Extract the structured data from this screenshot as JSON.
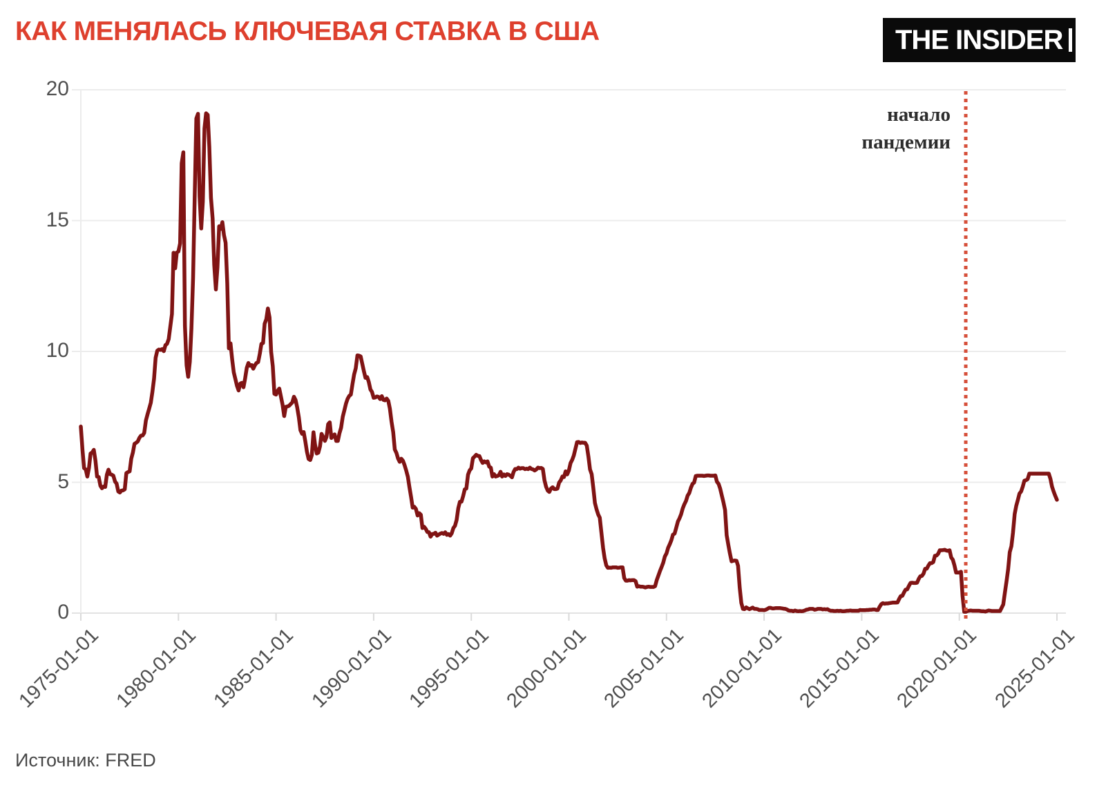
{
  "header": {
    "title": "КАК МЕНЯЛАСЬ КЛЮЧЕВАЯ СТАВКА В США",
    "logo": "THE INSIDER",
    "title_color": "#de402e",
    "logo_bg": "#0a0a0a",
    "logo_fg": "#ffffff"
  },
  "annotation": {
    "line1": "начало",
    "line2": "пандемии",
    "x_year": 2020.33,
    "line_color": "#d64f3a",
    "text_color": "#2d2d2d",
    "style": "dotted-vertical-line"
  },
  "footer": {
    "source": "Источник: FRED"
  },
  "chart_data": {
    "type": "line",
    "title": "КАК МЕНЯЛАСЬ КЛЮЧЕВАЯ СТАВКА В США",
    "source": "Источник: FRED",
    "xlabel": "",
    "ylabel": "",
    "ylim": [
      0,
      20
    ],
    "y_ticks": [
      0,
      5,
      10,
      15,
      20
    ],
    "x_ticks": [
      "1975-01-01",
      "1980-01-01",
      "1985-01-01",
      "1990-01-01",
      "1995-01-01",
      "2000-01-01",
      "2005-01-01",
      "2010-01-01",
      "2015-01-01",
      "2020-01-01",
      "2025-01-01"
    ],
    "grid": "horizontal",
    "legend": "none",
    "line_color": "#801414",
    "grid_color": "#ececec",
    "series": [
      {
        "start": "1975-01",
        "step_months": 1,
        "end": "2025-01",
        "values": [
          7.13,
          6.24,
          5.54,
          5.49,
          5.22,
          5.55,
          6.1,
          6.14,
          6.24,
          5.82,
          5.22,
          5.2,
          4.87,
          4.77,
          4.84,
          4.82,
          5.29,
          5.48,
          5.31,
          5.29,
          5.25,
          5.03,
          4.95,
          4.65,
          4.61,
          4.68,
          4.69,
          4.73,
          5.35,
          5.39,
          5.42,
          5.9,
          6.14,
          6.47,
          6.51,
          6.56,
          6.7,
          6.78,
          6.79,
          6.89,
          7.36,
          7.6,
          7.81,
          8.04,
          8.45,
          8.96,
          9.76,
          10.03,
          10.07,
          10.06,
          10.09,
          10.01,
          10.24,
          10.29,
          10.47,
          10.94,
          11.43,
          13.77,
          13.18,
          13.78,
          13.82,
          14.13,
          17.19,
          17.61,
          10.98,
          9.47,
          9.03,
          9.61,
          10.87,
          12.81,
          15.85,
          18.9,
          19.08,
          15.93,
          14.7,
          15.72,
          18.52,
          19.1,
          19.04,
          17.82,
          15.87,
          15.08,
          13.31,
          12.37,
          13.22,
          14.78,
          14.68,
          14.94,
          14.45,
          14.15,
          12.59,
          10.12,
          10.31,
          9.71,
          9.2,
          8.95,
          8.68,
          8.51,
          8.77,
          8.8,
          8.63,
          8.98,
          9.37,
          9.56,
          9.45,
          9.48,
          9.34,
          9.47,
          9.56,
          9.59,
          9.91,
          10.29,
          10.32,
          11.06,
          11.23,
          11.64,
          11.3,
          9.99,
          9.43,
          8.38,
          8.35,
          8.5,
          8.58,
          8.27,
          7.97,
          7.53,
          7.88,
          7.9,
          7.92,
          7.99,
          8.05,
          8.27,
          8.14,
          7.86,
          7.48,
          6.99,
          6.85,
          6.92,
          6.56,
          6.17,
          5.89,
          5.85,
          6.04,
          6.91,
          6.43,
          6.1,
          6.13,
          6.37,
          6.85,
          6.73,
          6.58,
          6.73,
          7.22,
          7.29,
          6.69,
          6.77,
          6.83,
          6.58,
          6.58,
          6.87,
          7.09,
          7.51,
          7.75,
          8.01,
          8.19,
          8.3,
          8.35,
          8.76,
          9.12,
          9.36,
          9.85,
          9.84,
          9.81,
          9.53,
          9.24,
          8.99,
          9.02,
          8.84,
          8.55,
          8.45,
          8.23,
          8.24,
          8.28,
          8.26,
          8.18,
          8.29,
          8.15,
          8.13,
          8.2,
          8.11,
          7.81,
          7.31,
          6.91,
          6.25,
          6.12,
          5.91,
          5.78,
          5.9,
          5.82,
          5.66,
          5.45,
          5.21,
          4.81,
          4.43,
          4.03,
          4.06,
          3.98,
          3.73,
          3.82,
          3.76,
          3.25,
          3.3,
          3.22,
          3.1,
          3.09,
          2.92,
          3.02,
          3.03,
          3.07,
          2.96,
          3.0,
          3.04,
          3.06,
          3.03,
          3.09,
          2.99,
          3.02,
          2.96,
          3.05,
          3.25,
          3.34,
          3.56,
          4.01,
          4.25,
          4.26,
          4.47,
          4.73,
          4.76,
          5.29,
          5.45,
          5.53,
          5.92,
          5.98,
          6.05,
          6.01,
          6.0,
          5.85,
          5.74,
          5.8,
          5.76,
          5.8,
          5.6,
          5.56,
          5.22,
          5.31,
          5.22,
          5.24,
          5.27,
          5.4,
          5.22,
          5.3,
          5.24,
          5.31,
          5.29,
          5.25,
          5.19,
          5.39,
          5.51,
          5.5,
          5.56,
          5.52,
          5.54,
          5.54,
          5.5,
          5.52,
          5.5,
          5.56,
          5.51,
          5.49,
          5.45,
          5.49,
          5.56,
          5.54,
          5.55,
          5.51,
          5.07,
          4.83,
          4.68,
          4.63,
          4.76,
          4.81,
          4.74,
          4.74,
          4.76,
          4.99,
          5.07,
          5.22,
          5.2,
          5.42,
          5.3,
          5.45,
          5.73,
          5.85,
          6.02,
          6.27,
          6.53,
          6.54,
          6.5,
          6.52,
          6.51,
          6.51,
          6.4,
          5.98,
          5.49,
          5.31,
          4.8,
          4.21,
          3.97,
          3.77,
          3.65,
          3.07,
          2.49,
          2.09,
          1.82,
          1.73,
          1.74,
          1.73,
          1.75,
          1.75,
          1.75,
          1.73,
          1.74,
          1.75,
          1.75,
          1.34,
          1.24,
          1.24,
          1.26,
          1.25,
          1.26,
          1.26,
          1.22,
          1.01,
          1.03,
          1.01,
          1.01,
          1.0,
          0.98,
          1.0,
          1.01,
          1.0,
          1.0,
          1.0,
          1.03,
          1.26,
          1.43,
          1.61,
          1.76,
          1.93,
          2.16,
          2.28,
          2.5,
          2.63,
          2.79,
          3.0,
          3.04,
          3.26,
          3.5,
          3.62,
          3.78,
          4.0,
          4.16,
          4.29,
          4.49,
          4.59,
          4.79,
          4.94,
          4.99,
          5.24,
          5.25,
          5.25,
          5.25,
          5.25,
          5.24,
          5.25,
          5.26,
          5.26,
          5.25,
          5.25,
          5.25,
          5.26,
          5.02,
          4.94,
          4.76,
          4.49,
          4.24,
          3.94,
          2.98,
          2.61,
          2.28,
          1.98,
          2.0,
          2.01,
          2.0,
          1.81,
          0.97,
          0.39,
          0.16,
          0.15,
          0.22,
          0.18,
          0.15,
          0.18,
          0.21,
          0.16,
          0.16,
          0.15,
          0.12,
          0.12,
          0.12,
          0.11,
          0.13,
          0.16,
          0.2,
          0.2,
          0.18,
          0.18,
          0.19,
          0.19,
          0.19,
          0.19,
          0.18,
          0.17,
          0.16,
          0.14,
          0.1,
          0.09,
          0.09,
          0.07,
          0.1,
          0.08,
          0.07,
          0.08,
          0.07,
          0.08,
          0.1,
          0.13,
          0.14,
          0.16,
          0.16,
          0.16,
          0.13,
          0.14,
          0.16,
          0.16,
          0.16,
          0.14,
          0.15,
          0.14,
          0.15,
          0.11,
          0.09,
          0.09,
          0.08,
          0.08,
          0.09,
          0.08,
          0.09,
          0.07,
          0.07,
          0.08,
          0.09,
          0.09,
          0.1,
          0.09,
          0.09,
          0.09,
          0.09,
          0.09,
          0.12,
          0.11,
          0.11,
          0.11,
          0.12,
          0.12,
          0.13,
          0.13,
          0.14,
          0.14,
          0.12,
          0.12,
          0.24,
          0.34,
          0.38,
          0.36,
          0.37,
          0.37,
          0.38,
          0.39,
          0.4,
          0.4,
          0.4,
          0.41,
          0.54,
          0.65,
          0.66,
          0.79,
          0.9,
          0.91,
          1.04,
          1.15,
          1.16,
          1.15,
          1.15,
          1.16,
          1.3,
          1.41,
          1.42,
          1.51,
          1.69,
          1.7,
          1.82,
          1.91,
          1.91,
          1.95,
          2.19,
          2.2,
          2.27,
          2.4,
          2.4,
          2.41,
          2.42,
          2.39,
          2.38,
          2.4,
          2.13,
          2.04,
          1.83,
          1.55,
          1.55,
          1.55,
          1.58,
          0.65,
          0.05,
          0.05,
          0.08,
          0.09,
          0.1,
          0.09,
          0.09,
          0.09,
          0.09,
          0.09,
          0.08,
          0.07,
          0.07,
          0.06,
          0.08,
          0.1,
          0.09,
          0.08,
          0.08,
          0.08,
          0.08,
          0.08,
          0.08,
          0.2,
          0.33,
          0.77,
          1.21,
          1.68,
          2.33,
          2.56,
          3.08,
          3.78,
          4.1,
          4.33,
          4.57,
          4.65,
          4.83,
          5.06,
          5.08,
          5.12,
          5.33,
          5.33,
          5.33,
          5.33,
          5.33,
          5.33,
          5.33,
          5.33,
          5.33,
          5.33,
          5.33,
          5.33,
          5.33,
          5.13,
          4.83,
          4.64,
          4.48,
          4.33
        ]
      }
    ],
    "annotations": [
      {
        "text": "начало пандемии",
        "x_year": 2020.33,
        "line_style": "dotted",
        "color": "#d64f3a"
      }
    ]
  }
}
